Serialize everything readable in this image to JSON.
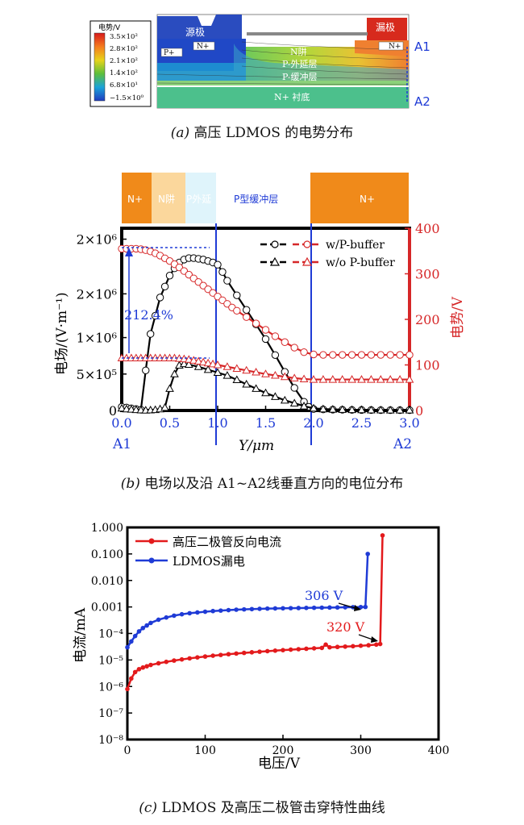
{
  "panel_a": {
    "legend_title": "电势/V",
    "legend_ticks": [
      "3.5×10²",
      "2.8×10²",
      "2.1×10²",
      "1.4×10²",
      "6.8×10¹",
      "−1.5×10⁰"
    ],
    "legend_colors": [
      "#d7191c",
      "#f57c1e",
      "#e7d31a",
      "#5dbf3c",
      "#1aa3d9",
      "#1f3bbf"
    ],
    "labels": {
      "source": "源极",
      "drain": "漏极",
      "p_plus": "P+",
      "n_plus_src": "N+",
      "n_plus_drn": "N+",
      "nwell": "N阱",
      "p_ext": "P-外延层",
      "p_buf": "P-缓冲层",
      "substrate": "N+ 衬底",
      "a1": "A1",
      "a2": "A2"
    },
    "caption_prefix": "(a)",
    "caption_text": "高压 LDMOS 的电势分布"
  },
  "panel_b": {
    "regions": [
      {
        "label": "N+",
        "color": "#f08a1a"
      },
      {
        "label": "N阱",
        "color": "#fbd79c"
      },
      {
        "label": "P外延",
        "color": "#dff4fb"
      },
      {
        "label": "P型缓冲层",
        "color": "#ffffff"
      },
      {
        "label": "N+",
        "color": "#f08a1a"
      }
    ],
    "annotation": "212.4%",
    "xaxis_label": "Y/μm",
    "a1": "A1",
    "a2": "A2",
    "caption_prefix": "(b)",
    "caption_text": "电场以及沿 A1~A2线垂直方向的电位分布"
  },
  "chart_data": [
    {
      "type": "line",
      "title": "",
      "xlabel": "Y/μm",
      "ylabel": "电场/(V·m⁻¹)",
      "y2label": "电势/V",
      "xlim": [
        0,
        3.0
      ],
      "ylim": [
        0,
        2500000
      ],
      "y2lim": [
        0,
        400
      ],
      "x_ticks": [
        "0.0",
        "0.5",
        "1.0",
        "1.5",
        "2.0",
        "2.5",
        "3.0"
      ],
      "y_ticks": [
        "0",
        "5×10⁵",
        "1×10⁶",
        "2×10⁶",
        "2×10⁶"
      ],
      "y2_ticks": [
        "0",
        "100",
        "200",
        "300",
        "400"
      ],
      "legend": [
        "w/P-buffer",
        "w/o P-buffer"
      ],
      "legend_position": "top-right",
      "series": [
        {
          "name": "w/P-buffer",
          "axis": "left",
          "color": "#000000",
          "marker": "circle",
          "x": [
            0.0,
            0.05,
            0.1,
            0.15,
            0.2,
            0.25,
            0.3,
            0.35,
            0.4,
            0.45,
            0.5,
            0.55,
            0.6,
            0.65,
            0.7,
            0.75,
            0.8,
            0.85,
            0.9,
            0.95,
            1.0,
            1.05,
            1.1,
            1.2,
            1.3,
            1.4,
            1.5,
            1.6,
            1.7,
            1.8,
            1.9,
            1.95,
            2.0,
            2.1,
            2.2,
            2.3,
            2.4,
            2.5,
            2.6,
            2.7,
            2.8,
            2.9,
            3.0
          ],
          "y": [
            50000,
            40000,
            30000,
            20000,
            10000,
            550000,
            1050000,
            1300000,
            1550000,
            1700000,
            1850000,
            1950000,
            2030000,
            2070000,
            2090000,
            2090000,
            2080000,
            2070000,
            2050000,
            2030000,
            2000000,
            1900000,
            1780000,
            1580000,
            1380000,
            1180000,
            980000,
            760000,
            530000,
            310000,
            120000,
            50000,
            20000,
            15000,
            12000,
            10000,
            8000,
            7000,
            6000,
            5000,
            5000,
            5000,
            5000
          ]
        },
        {
          "name": "w/P-buffer",
          "axis": "right",
          "color": "#d62728",
          "marker": "circle",
          "x": [
            0.0,
            0.05,
            0.1,
            0.15,
            0.2,
            0.25,
            0.3,
            0.35,
            0.4,
            0.45,
            0.5,
            0.55,
            0.6,
            0.65,
            0.7,
            0.75,
            0.8,
            0.85,
            0.9,
            0.95,
            1.0,
            1.05,
            1.1,
            1.15,
            1.2,
            1.3,
            1.4,
            1.5,
            1.6,
            1.7,
            1.8,
            1.9,
            2.0,
            2.1,
            2.2,
            2.3,
            2.4,
            2.5,
            2.6,
            2.7,
            2.8,
            2.9,
            3.0
          ],
          "y": [
            355,
            355,
            355,
            355,
            354,
            352,
            349,
            345,
            340,
            334,
            328,
            321,
            314,
            306,
            298,
            290,
            282,
            274,
            266,
            258,
            250,
            242,
            234,
            226,
            219,
            205,
            191,
            177,
            163,
            150,
            138,
            128,
            123,
            122,
            122,
            122,
            122,
            122,
            122,
            122,
            122,
            122,
            122
          ]
        },
        {
          "name": "w/o P-buffer",
          "axis": "left",
          "color": "#000000",
          "marker": "triangle",
          "x": [
            0.0,
            0.05,
            0.1,
            0.15,
            0.2,
            0.25,
            0.3,
            0.35,
            0.4,
            0.45,
            0.5,
            0.55,
            0.6,
            0.65,
            0.7,
            0.8,
            0.9,
            1.0,
            1.1,
            1.2,
            1.3,
            1.4,
            1.5,
            1.6,
            1.7,
            1.8,
            1.9,
            2.0,
            2.1,
            2.2,
            2.3,
            2.4,
            2.5,
            2.6,
            2.7,
            2.8,
            2.9,
            3.0
          ],
          "y": [
            30000,
            20000,
            15000,
            10000,
            5000,
            3000,
            5000,
            10000,
            20000,
            40000,
            300000,
            500000,
            620000,
            640000,
            630000,
            600000,
            560000,
            520000,
            480000,
            420000,
            360000,
            300000,
            240000,
            190000,
            140000,
            100000,
            60000,
            30000,
            20000,
            15000,
            12000,
            10000,
            8000,
            6000,
            5000,
            4000,
            4000,
            4000
          ]
        },
        {
          "name": "w/o P-buffer",
          "axis": "right",
          "color": "#d62728",
          "marker": "triangle",
          "x": [
            0.0,
            0.05,
            0.1,
            0.15,
            0.2,
            0.25,
            0.3,
            0.35,
            0.4,
            0.45,
            0.5,
            0.55,
            0.6,
            0.65,
            0.7,
            0.75,
            0.8,
            0.85,
            0.9,
            0.95,
            1.0,
            1.1,
            1.2,
            1.3,
            1.4,
            1.5,
            1.6,
            1.7,
            1.8,
            1.9,
            2.0,
            2.1,
            2.2,
            2.3,
            2.4,
            2.5,
            2.6,
            2.7,
            2.8,
            2.9,
            3.0
          ],
          "y": [
            115,
            115,
            115,
            115,
            115,
            115,
            115,
            115,
            115,
            115,
            115,
            115,
            114,
            113,
            112,
            110,
            108,
            106,
            104,
            102,
            100,
            96,
            92,
            88,
            84,
            80,
            77,
            74,
            71,
            69,
            68,
            68,
            68,
            68,
            68,
            68,
            68,
            68,
            68,
            68,
            68
          ]
        }
      ]
    },
    {
      "type": "line",
      "title": "",
      "xlabel": "电压/V",
      "ylabel": "电流/mA",
      "xlim": [
        0,
        400
      ],
      "ylim": [
        1e-08,
        1
      ],
      "y_scale": "log",
      "x_ticks": [
        "0",
        "100",
        "200",
        "300",
        "400"
      ],
      "y_ticks": [
        "10⁻⁸",
        "10⁻⁷",
        "10⁻⁶",
        "10⁻⁵",
        "10⁻⁴",
        "0.001",
        "0.010",
        "0.100",
        "1.000"
      ],
      "legend_position": "top-left",
      "annotations": [
        "306 V",
        "320 V"
      ],
      "series": [
        {
          "name": "高压二极管反向电流",
          "color": "#e31a1c",
          "x": [
            0,
            5,
            10,
            15,
            20,
            25,
            30,
            40,
            50,
            60,
            70,
            80,
            90,
            100,
            110,
            120,
            130,
            140,
            150,
            160,
            170,
            180,
            190,
            200,
            210,
            220,
            230,
            240,
            250,
            255,
            260,
            270,
            280,
            290,
            300,
            310,
            320,
            325,
            328
          ],
          "y": [
            8e-07,
            2e-06,
            3.5e-06,
            4.5e-06,
            5.2e-06,
            5.8e-06,
            6.5e-06,
            7.5e-06,
            8.5e-06,
            9.5e-06,
            1.05e-05,
            1.15e-05,
            1.25e-05,
            1.35e-05,
            1.45e-05,
            1.55e-05,
            1.65e-05,
            1.75e-05,
            1.85e-05,
            1.95e-05,
            2.05e-05,
            2.15e-05,
            2.25e-05,
            2.35e-05,
            2.45e-05,
            2.55e-05,
            2.65e-05,
            2.75e-05,
            2.85e-05,
            3.8e-05,
            3e-05,
            3.1e-05,
            3.2e-05,
            3.3e-05,
            3.45e-05,
            3.6e-05,
            3.8e-05,
            4e-05,
            0.5
          ]
        },
        {
          "name": "LDMOS漏电",
          "color": "#1f3bd6",
          "x": [
            0,
            5,
            10,
            15,
            20,
            25,
            30,
            40,
            50,
            60,
            70,
            80,
            90,
            100,
            110,
            120,
            130,
            140,
            150,
            160,
            170,
            180,
            190,
            200,
            210,
            220,
            230,
            240,
            250,
            260,
            270,
            280,
            290,
            300,
            306,
            309
          ],
          "y": [
            3e-05,
            5e-05,
            8e-05,
            0.00012,
            0.00016,
            0.0002,
            0.00025,
            0.00033,
            0.0004,
            0.00047,
            0.00053,
            0.00058,
            0.00062,
            0.00066,
            0.0007,
            0.00073,
            0.00076,
            0.00079,
            0.00081,
            0.00083,
            0.00085,
            0.00087,
            0.00088,
            0.00089,
            0.0009,
            0.00091,
            0.00092,
            0.00093,
            0.00094,
            0.00095,
            0.00096,
            0.00097,
            0.00098,
            0.00099,
            0.001,
            0.1
          ]
        }
      ]
    }
  ],
  "panel_c": {
    "caption_prefix": "(c)",
    "caption_text": "LDMOS 及高压二极管击穿特性曲线"
  }
}
